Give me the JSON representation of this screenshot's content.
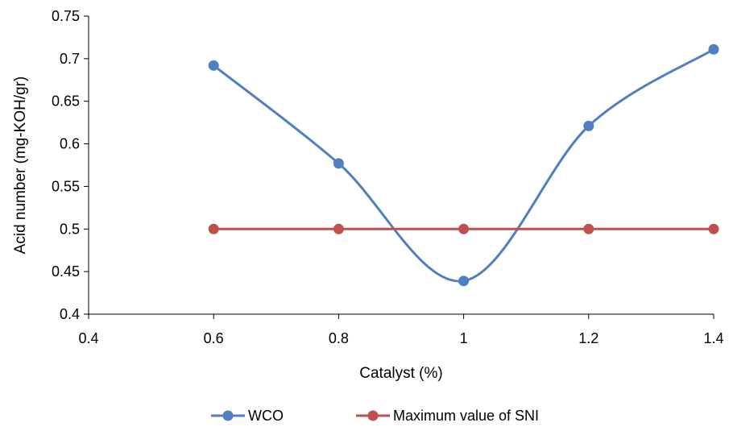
{
  "chart_data": {
    "type": "line",
    "title": "",
    "xlabel": "Catalyst (%)",
    "ylabel": "Acid number (mg-KOH/gr)",
    "xlim": [
      0.4,
      1.4
    ],
    "ylim": [
      0.4,
      0.75
    ],
    "x_ticks": [
      "0.4",
      "0.6",
      "0.8",
      "1",
      "1.2",
      "1.4"
    ],
    "y_ticks": [
      "0.4",
      "0.45",
      "0.5",
      "0.55",
      "0.6",
      "0.65",
      "0.7",
      "0.75"
    ],
    "grid": false,
    "legend_position": "bottom",
    "smooth": true,
    "x": [
      0.6,
      0.8,
      1.0,
      1.2,
      1.4
    ],
    "series": [
      {
        "name": "WCO",
        "color": "#4f7fc0",
        "values": [
          0.692,
          0.577,
          0.439,
          0.621,
          0.711
        ]
      },
      {
        "name": "Maximum value of SNI",
        "color": "#c0504d",
        "values": [
          0.5,
          0.5,
          0.5,
          0.5,
          0.5
        ]
      }
    ]
  }
}
